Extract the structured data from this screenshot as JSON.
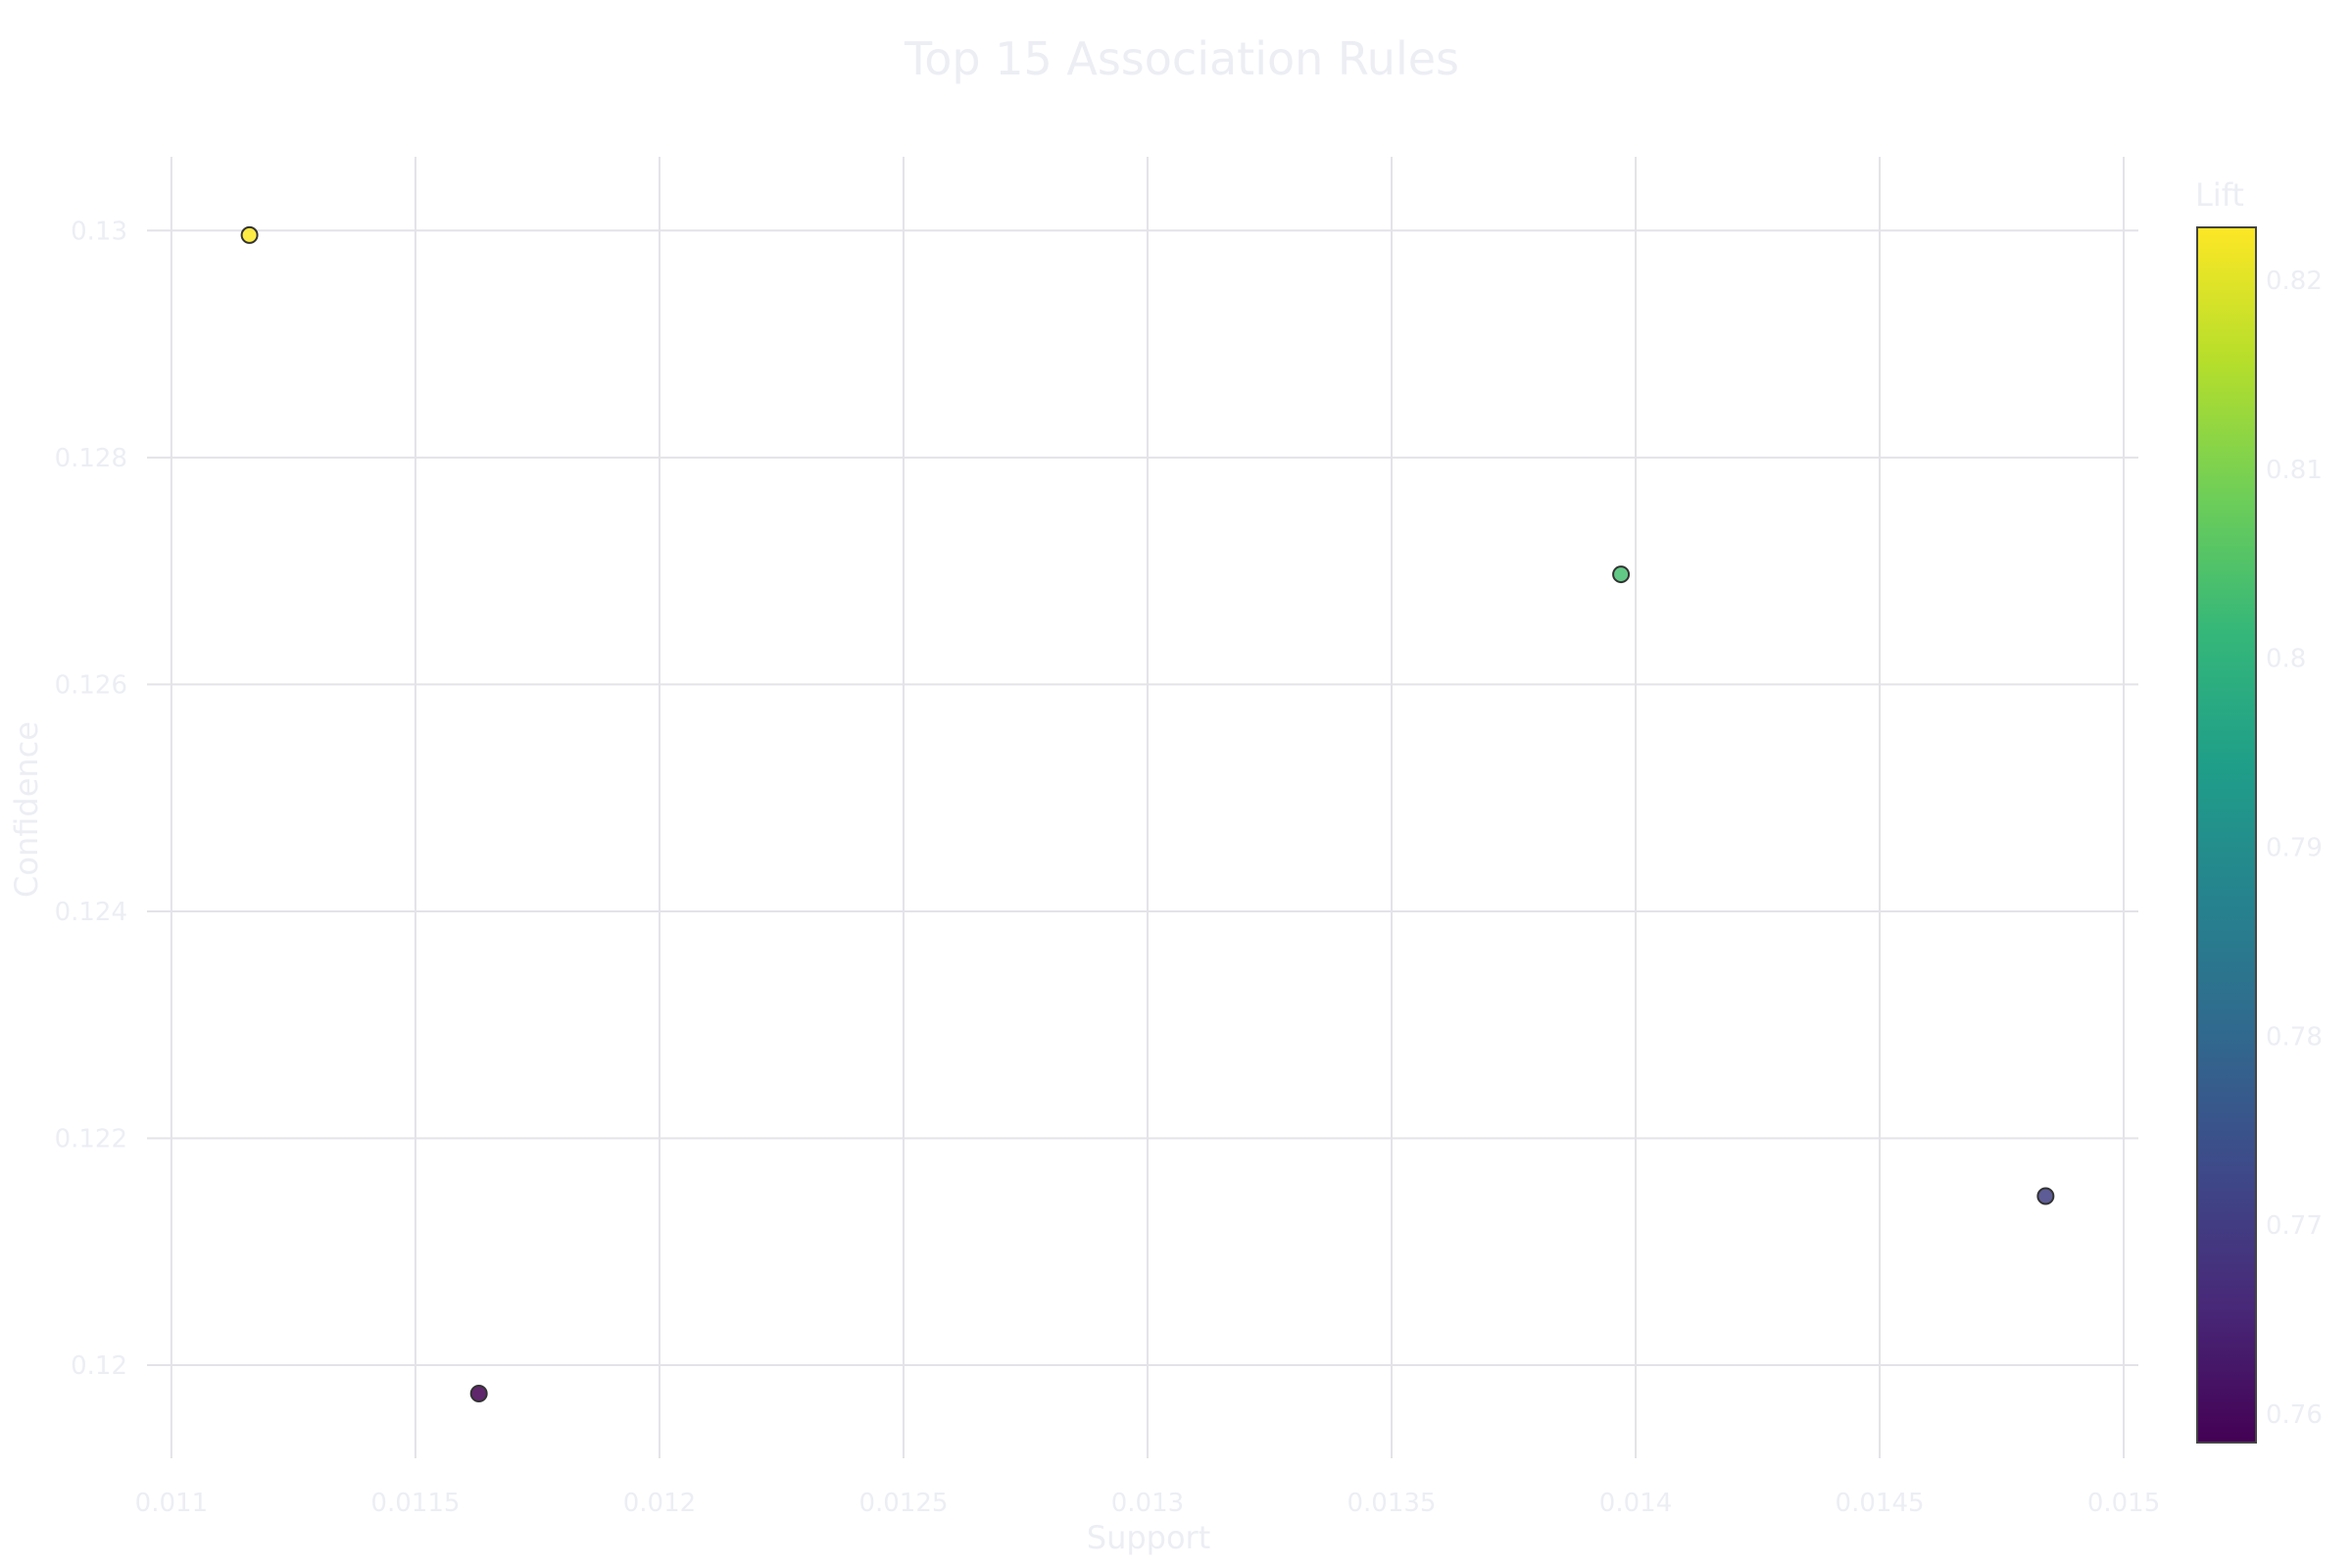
{
  "chart_data": {
    "type": "scatter",
    "title": "Top 15 Association Rules",
    "xlabel": "Support",
    "ylabel": "Confidence",
    "xlim": [
      0.01095,
      0.01503
    ],
    "ylim": [
      0.11918,
      0.13065
    ],
    "x_ticks": [
      0.011,
      0.0115,
      0.012,
      0.0125,
      0.013,
      0.0135,
      0.014,
      0.0145,
      0.015
    ],
    "x_tick_labels": [
      "0.011",
      "0.0115",
      "0.012",
      "0.0125",
      "0.013",
      "0.0135",
      "0.014",
      "0.0145",
      "0.015"
    ],
    "y_ticks": [
      0.12,
      0.122,
      0.124,
      0.126,
      0.128,
      0.13
    ],
    "y_tick_labels": [
      "0.12",
      "0.122",
      "0.124",
      "0.126",
      "0.128",
      "0.13"
    ],
    "grid": true,
    "colorbar": {
      "title": "Lift",
      "colorscale": "viridis",
      "range": [
        0.7585,
        0.8228
      ],
      "ticks": [
        0.76,
        0.77,
        0.78,
        0.79,
        0.8,
        0.81,
        0.82
      ],
      "tick_labels": [
        "0.76",
        "0.77",
        "0.78",
        "0.79",
        "0.8",
        "0.81",
        "0.82"
      ]
    },
    "points": [
      {
        "x": 0.01116,
        "y": 0.12996,
        "lift": 0.8228
      },
      {
        "x": 0.01163,
        "y": 0.11975,
        "lift": 0.7585
      },
      {
        "x": 0.01397,
        "y": 0.12697,
        "lift": 0.8034
      },
      {
        "x": 0.01484,
        "y": 0.12149,
        "lift": 0.7707
      }
    ]
  }
}
